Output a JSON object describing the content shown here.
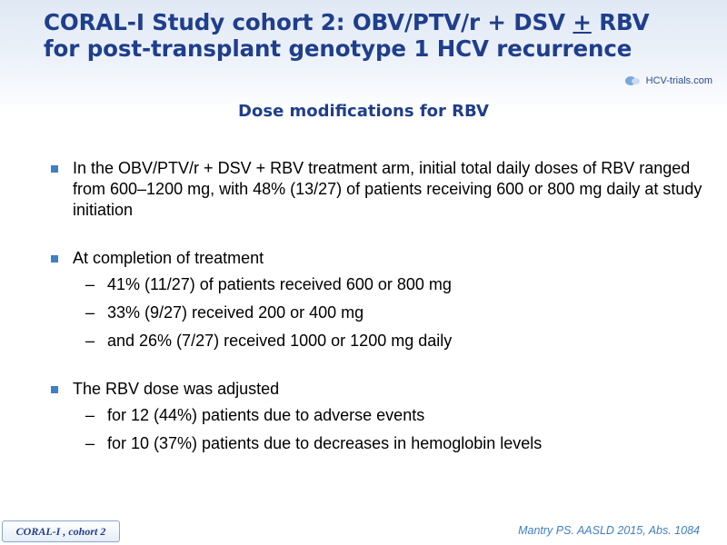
{
  "title": {
    "line1_prefix": "CORAL-I Study cohort 2: OBV/PTV/r + DSV ",
    "line1_underlined": "+",
    "line1_suffix": " RBV",
    "line2": "for post-transplant genotype 1 HCV recurrence"
  },
  "logo": {
    "text": "HCV-trials.com"
  },
  "subtitle": "Dose modifications for RBV",
  "bullets": [
    {
      "text": "In the OBV/PTV/r + DSV + RBV treatment arm, initial total daily doses of RBV ranged from 600–1200 mg, with 48% (13/27) of patients receiving 600 or 800 mg daily at study initiation",
      "subs": []
    },
    {
      "text": "At completion of treatment",
      "subs": [
        "41% (11/27) of patients received 600 or 800 mg",
        "33% (9/27) received 200 or 400 mg",
        "and 26% (7/27) received 1000 or 1200 mg daily"
      ]
    },
    {
      "text": "The RBV dose was adjusted",
      "subs": [
        "for 12 (44%) patients due to adverse events",
        "for 10 (37%) patients due to decreases in hemoglobin levels"
      ]
    }
  ],
  "footer": {
    "tag": "CORAL-I , cohort 2",
    "reference": "Mantry PS. AASLD 2015, Abs. 1084"
  },
  "colors": {
    "title": "#1f3e8c",
    "bullet": "#3f7fc4",
    "reference": "#3f7fc4"
  },
  "icons": {
    "bullet": "square-bullet-icon",
    "dash": "dash-icon",
    "logo": "hcv-trials-logo-icon"
  }
}
